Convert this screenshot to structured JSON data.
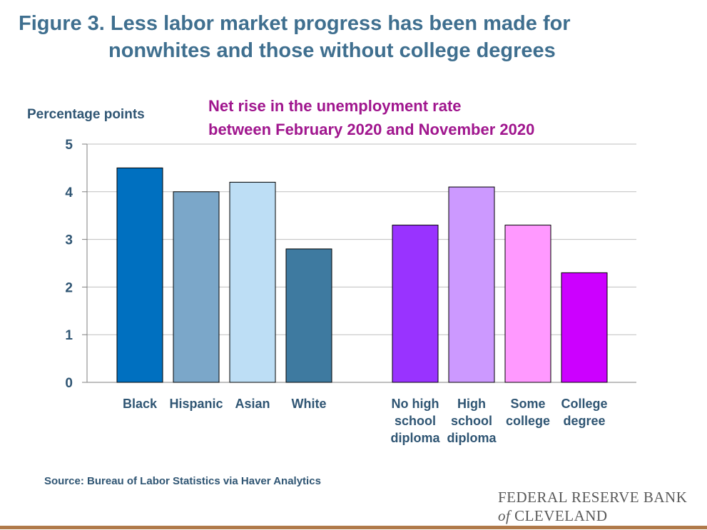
{
  "header": {
    "title_line1": "Figure 3. Less labor market progress has been made for",
    "title_line2": "nonwhites and those without college degrees"
  },
  "chart_data": {
    "type": "bar",
    "subtitle_line1": "Net rise in the unemployment rate",
    "subtitle_line2": "between February 2020 and November 2020",
    "ylabel": "Percentage points",
    "xlabel": "",
    "ylim": [
      0,
      5
    ],
    "yticks": [
      0,
      1,
      2,
      3,
      4,
      5
    ],
    "grid": true,
    "groups": [
      {
        "categories": [
          {
            "label": [
              "Black"
            ],
            "value": 4.5,
            "color": "#0070c0"
          },
          {
            "label": [
              "Hispanic"
            ],
            "value": 4.0,
            "color": "#7ba7c9"
          },
          {
            "label": [
              "Asian"
            ],
            "value": 4.2,
            "color": "#bddef5"
          },
          {
            "label": [
              "White"
            ],
            "value": 2.8,
            "color": "#3e7aa0"
          }
        ]
      },
      {
        "categories": [
          {
            "label": [
              "No high",
              "school",
              "diploma"
            ],
            "value": 3.3,
            "color": "#9933ff"
          },
          {
            "label": [
              "High",
              "school",
              "diploma"
            ],
            "value": 4.1,
            "color": "#cc99ff"
          },
          {
            "label": [
              "Some",
              "college"
            ],
            "value": 3.3,
            "color": "#ff99ff"
          },
          {
            "label": [
              "College",
              "degree"
            ],
            "value": 2.3,
            "color": "#cc00ff"
          }
        ]
      }
    ]
  },
  "footer": {
    "source": "Source: Bureau of Labor Statistics via Haver Analytics",
    "logo_line1": "FEDERAL RESERVE BANK",
    "logo_of": "of",
    "logo_line2": "CLEVELAND"
  }
}
